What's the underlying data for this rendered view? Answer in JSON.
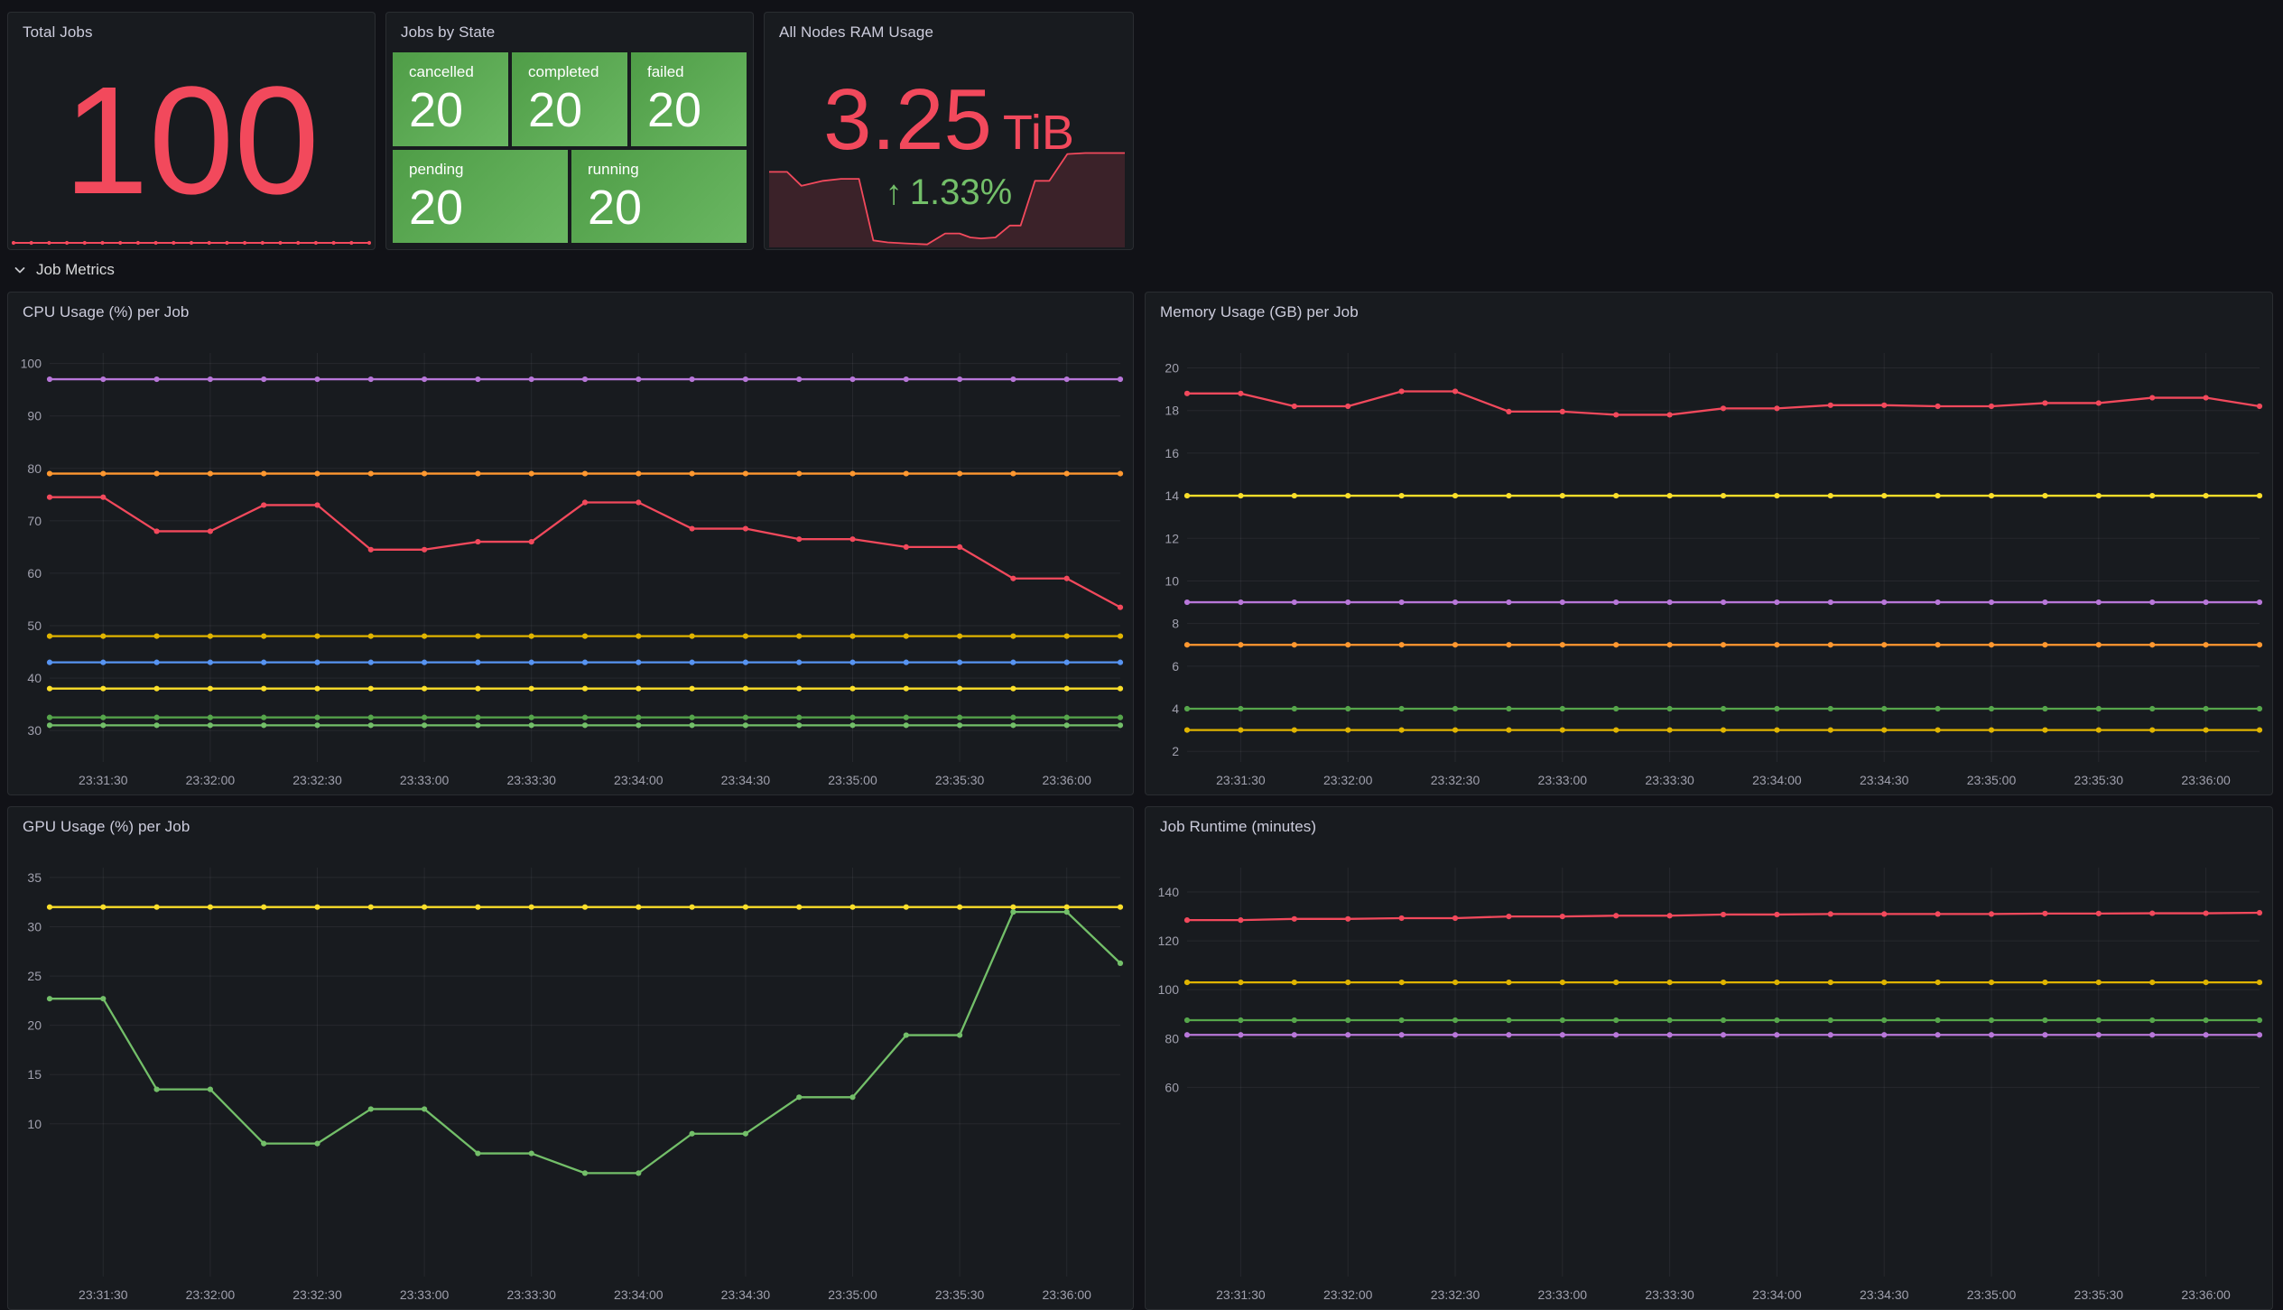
{
  "page": {
    "background": "#111217",
    "panel_background": "#181B1F",
    "accent_red": "#F2495C",
    "accent_green": "#73BF69"
  },
  "stat_total_jobs": {
    "title": "Total Jobs",
    "value": "100",
    "value_color": "#F2495C",
    "sparkline_value": 100,
    "sparkline_color": "#F2495C"
  },
  "jobs_by_state": {
    "title": "Jobs by State",
    "tile_gradient": [
      "#4f9d47",
      "#6ab762"
    ],
    "tiles": [
      {
        "label": "cancelled",
        "value": "20"
      },
      {
        "label": "completed",
        "value": "20"
      },
      {
        "label": "failed",
        "value": "20"
      },
      {
        "label": "pending",
        "value": "20"
      },
      {
        "label": "running",
        "value": "20"
      }
    ]
  },
  "ram_usage": {
    "title": "All Nodes RAM Usage",
    "value": "3.25",
    "unit": "TiB",
    "value_color": "#F2495C",
    "trend_arrow": "↑",
    "trend": "1.33%",
    "trend_color": "#73BF69",
    "sparkline_line_color": "#F2495C",
    "sparkline_fill_color": "rgba(242,73,92,0.16)",
    "sparkline_points": [
      [
        0,
        24
      ],
      [
        5,
        24
      ],
      [
        9,
        38
      ],
      [
        15,
        33
      ],
      [
        20,
        31
      ],
      [
        25,
        31
      ],
      [
        29,
        93
      ],
      [
        33,
        95
      ],
      [
        38,
        96
      ],
      [
        44,
        97
      ],
      [
        49,
        86
      ],
      [
        53,
        86
      ],
      [
        56,
        90
      ],
      [
        59,
        91
      ],
      [
        63,
        90
      ],
      [
        67,
        78
      ],
      [
        70,
        78
      ],
      [
        74,
        33
      ],
      [
        78,
        33
      ],
      [
        83,
        6
      ],
      [
        88,
        5
      ],
      [
        94,
        5
      ],
      [
        99,
        5
      ]
    ]
  },
  "section": {
    "label": "Job Metrics"
  },
  "chart_data": [
    {
      "type": "line",
      "title": "CPU Usage (%) per Job",
      "n_points": 21,
      "x_labels": [
        "23:31:30",
        "23:32:00",
        "23:32:30",
        "23:33:00",
        "23:33:30",
        "23:34:00",
        "23:34:30",
        "23:35:00",
        "23:35:30",
        "23:36:00"
      ],
      "y_ticks": [
        30,
        40,
        50,
        60,
        70,
        80,
        90,
        100
      ],
      "y_min": 24,
      "y_max": 102,
      "grid": true,
      "legend": "none",
      "series": [
        {
          "name": "series-purple",
          "color": "#B877D9",
          "value": 97
        },
        {
          "name": "series-orange",
          "color": "#FF9830",
          "value": 79
        },
        {
          "name": "series-red",
          "color": "#F2495C",
          "values": [
            74.5,
            74.5,
            68,
            68,
            73,
            73,
            64.5,
            64.5,
            66,
            66,
            73.5,
            73.5,
            68.5,
            68.5,
            66.5,
            66.5,
            65,
            65,
            59,
            59,
            53.5
          ]
        },
        {
          "name": "series-gold",
          "color": "#E0B400",
          "value": 48
        },
        {
          "name": "series-blue",
          "color": "#5794F2",
          "value": 43
        },
        {
          "name": "series-yellow",
          "color": "#FADE2A",
          "value": 38
        },
        {
          "name": "series-green",
          "color": "#56A64B",
          "value": 32.5
        },
        {
          "name": "series-light-green",
          "color": "#73BF69",
          "value": 31
        }
      ]
    },
    {
      "type": "line",
      "title": "Memory Usage (GB) per Job",
      "n_points": 21,
      "x_labels": [
        "23:31:30",
        "23:32:00",
        "23:32:30",
        "23:33:00",
        "23:33:30",
        "23:34:00",
        "23:34:30",
        "23:35:00",
        "23:35:30",
        "23:36:00"
      ],
      "y_ticks": [
        2,
        4,
        6,
        8,
        10,
        12,
        14,
        16,
        18,
        20
      ],
      "y_min": 1.5,
      "y_max": 20.7,
      "grid": true,
      "legend": "none",
      "series": [
        {
          "name": "series-red",
          "color": "#F2495C",
          "values": [
            18.8,
            18.8,
            18.2,
            18.2,
            18.9,
            18.9,
            17.95,
            17.95,
            17.8,
            17.8,
            18.1,
            18.1,
            18.25,
            18.25,
            18.2,
            18.2,
            18.35,
            18.35,
            18.6,
            18.6,
            18.2
          ]
        },
        {
          "name": "series-yellow",
          "color": "#FADE2A",
          "value": 14
        },
        {
          "name": "series-purple",
          "color": "#B877D9",
          "value": 9
        },
        {
          "name": "series-orange",
          "color": "#FF9830",
          "value": 7
        },
        {
          "name": "series-green",
          "color": "#56A64B",
          "value": 4
        },
        {
          "name": "series-gold",
          "color": "#E0B400",
          "value": 3
        }
      ]
    },
    {
      "type": "line",
      "title": "GPU Usage (%) per Job",
      "n_points": 21,
      "x_labels": [
        "23:31:30",
        "23:32:00",
        "23:32:30",
        "23:33:00",
        "23:33:30",
        "23:34:00",
        "23:34:30",
        "23:35:00",
        "23:35:30",
        "23:36:00"
      ],
      "y_ticks": [
        10,
        15,
        20,
        25,
        30,
        35
      ],
      "y_min": -5.5,
      "y_max": 36,
      "grid": true,
      "legend": "none",
      "series": [
        {
          "name": "series-yellow",
          "color": "#FADE2A",
          "value": 32
        },
        {
          "name": "series-green",
          "color": "#73BF69",
          "values": [
            22.7,
            22.7,
            13.5,
            13.5,
            8,
            8,
            11.5,
            11.5,
            7,
            7,
            5,
            5,
            9,
            9,
            12.7,
            12.7,
            19,
            19,
            31.5,
            31.5,
            26.3
          ]
        }
      ]
    },
    {
      "type": "line",
      "title": "Job Runtime (minutes)",
      "n_points": 21,
      "x_labels": [
        "23:31:30",
        "23:32:00",
        "23:32:30",
        "23:33:00",
        "23:33:30",
        "23:34:00",
        "23:34:30",
        "23:35:00",
        "23:35:30",
        "23:36:00"
      ],
      "y_ticks": [
        60,
        80,
        100,
        120,
        140
      ],
      "y_min": -17.5,
      "y_max": 150,
      "grid": true,
      "legend": "none",
      "series": [
        {
          "name": "series-red",
          "color": "#F2495C",
          "values": [
            128.5,
            128.5,
            129,
            129,
            129.3,
            129.3,
            130,
            130,
            130.3,
            130.3,
            130.8,
            130.8,
            131,
            131,
            131,
            131,
            131.2,
            131.2,
            131.3,
            131.3,
            131.5
          ]
        },
        {
          "name": "series-gold",
          "color": "#E0B400",
          "value": 103
        },
        {
          "name": "series-green",
          "color": "#56A64B",
          "value": 87.5
        },
        {
          "name": "series-purple",
          "color": "#B877D9",
          "value": 81.5
        }
      ]
    }
  ]
}
